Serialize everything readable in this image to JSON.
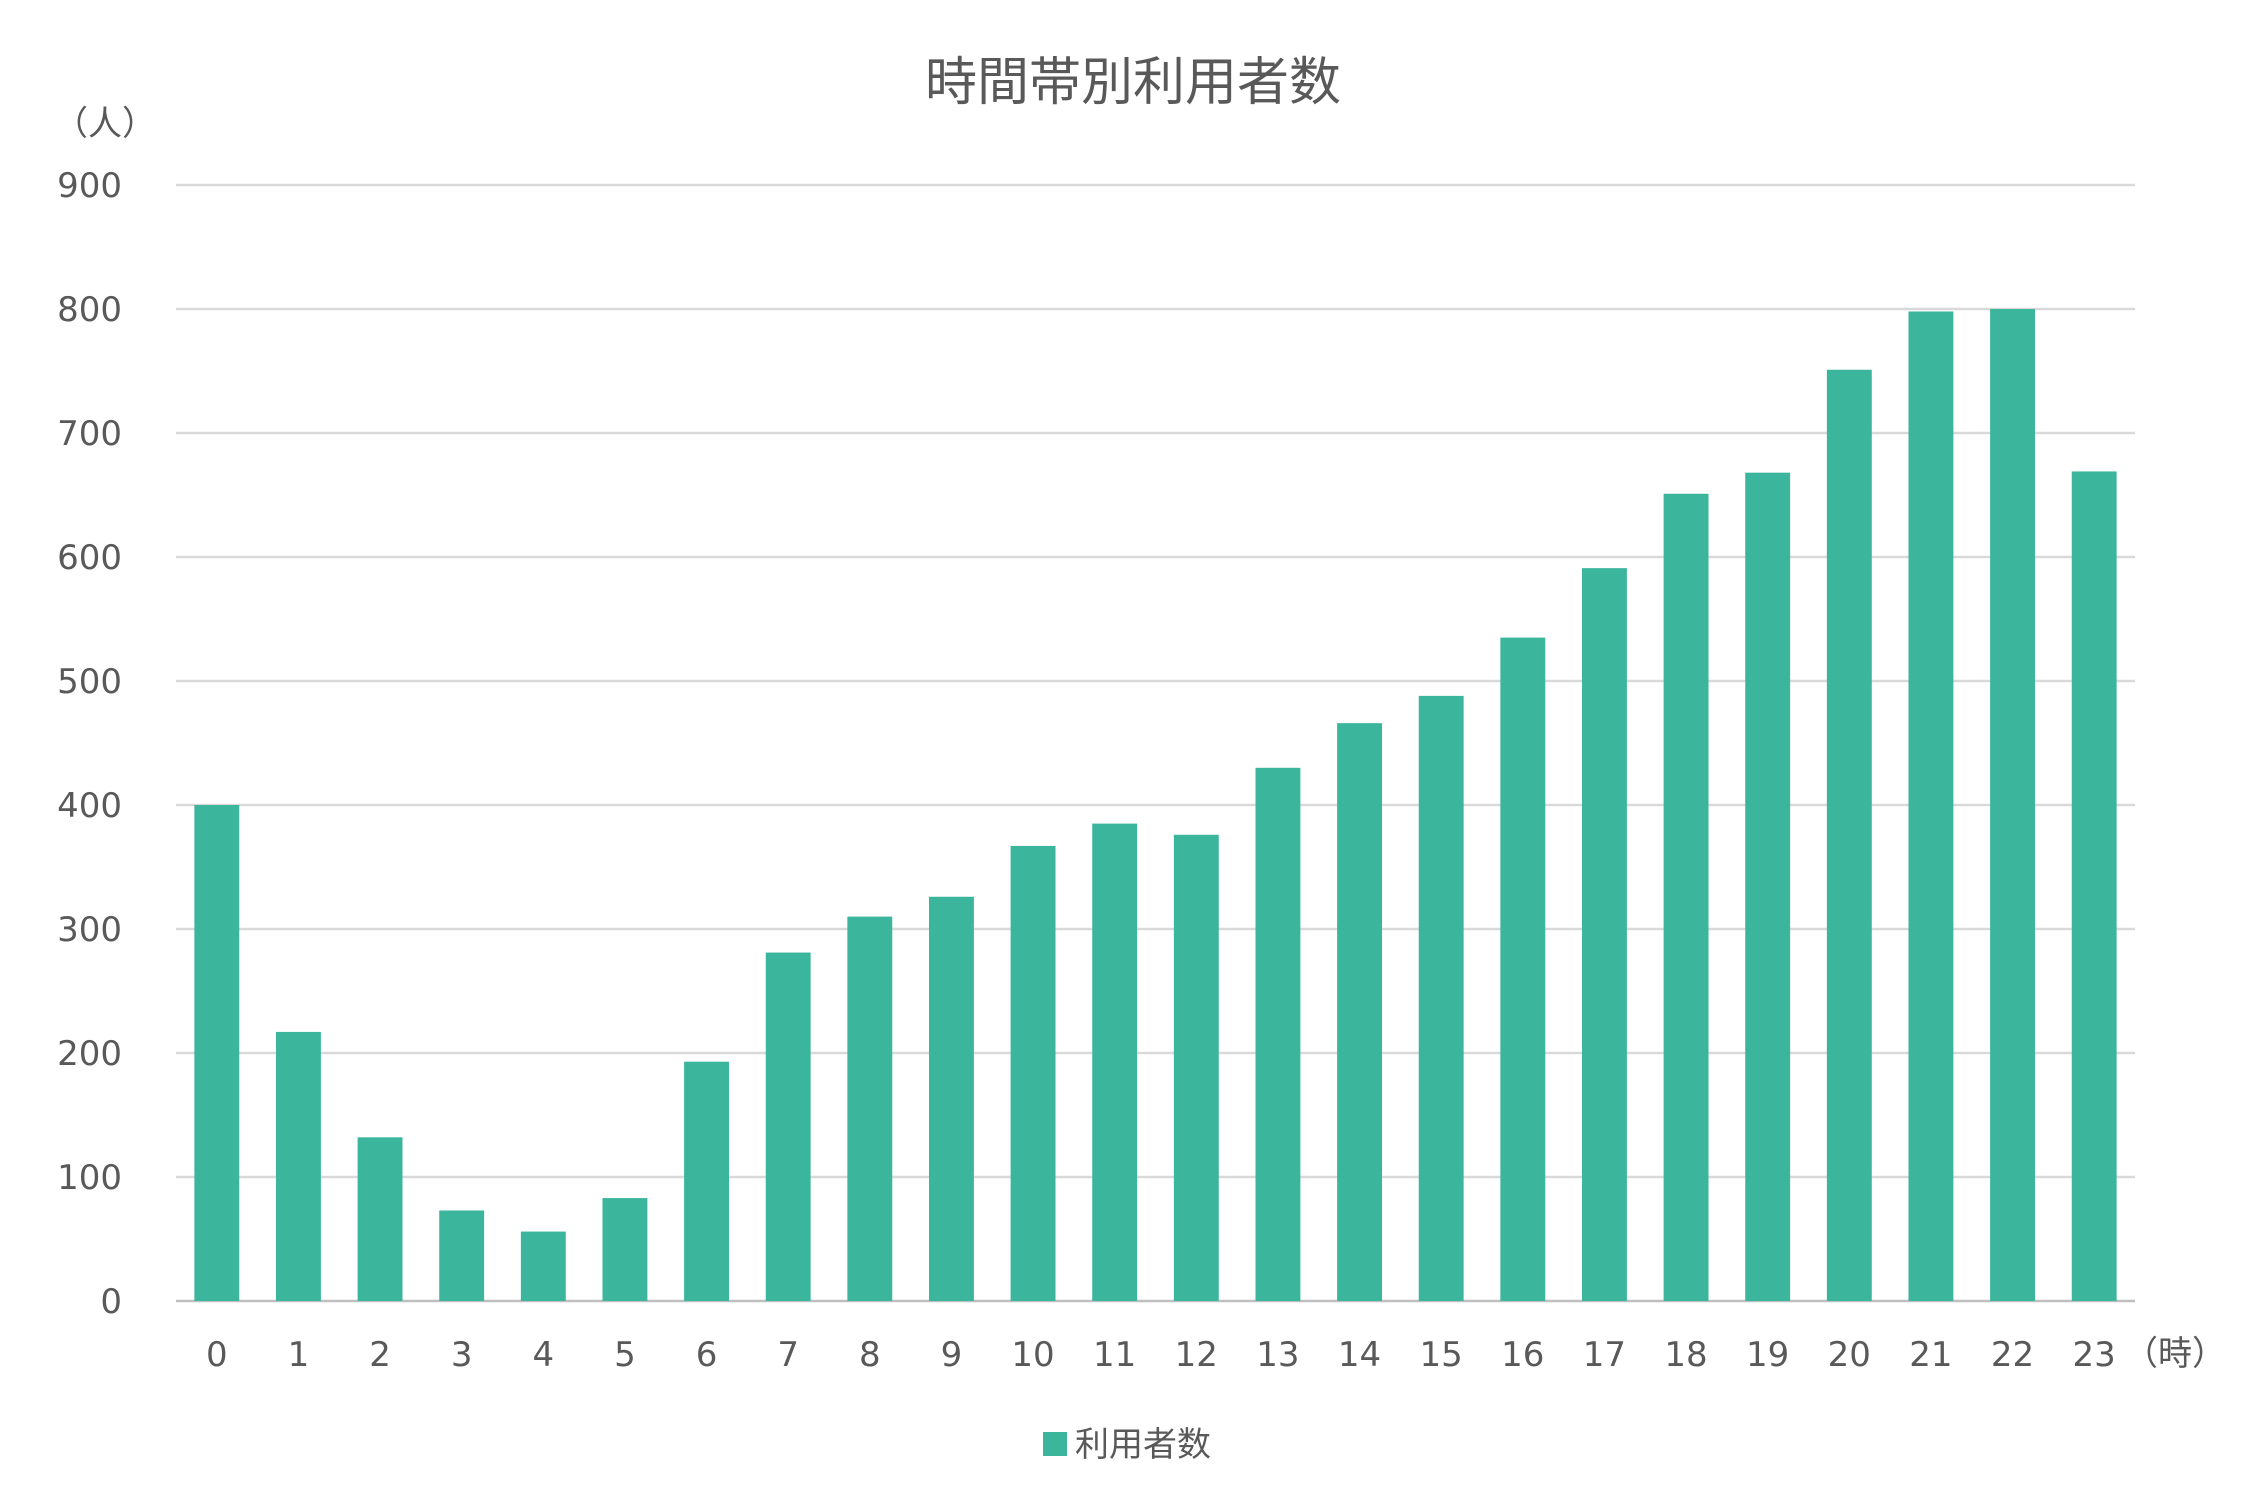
{
  "chart_data": {
    "type": "bar",
    "title": "時間帯別利用者数",
    "ylabel": "（人）",
    "xlabel": "（時）",
    "ylim": [
      0,
      900
    ],
    "yticks": [
      "0",
      "100",
      "200",
      "300",
      "400",
      "500",
      "600",
      "700",
      "800",
      "900"
    ],
    "grid": true,
    "legend_position": "bottom",
    "categories": [
      "0",
      "1",
      "2",
      "3",
      "4",
      "5",
      "6",
      "7",
      "8",
      "9",
      "10",
      "11",
      "12",
      "13",
      "14",
      "15",
      "16",
      "17",
      "18",
      "19",
      "20",
      "21",
      "22",
      "23"
    ],
    "series": [
      {
        "name": "利用者数",
        "color": "#3BB59C",
        "values": [
          400,
          217,
          132,
          73,
          56,
          83,
          193,
          281,
          310,
          326,
          367,
          385,
          376,
          430,
          466,
          488,
          535,
          591,
          651,
          668,
          751,
          798,
          800,
          669
        ]
      }
    ]
  }
}
